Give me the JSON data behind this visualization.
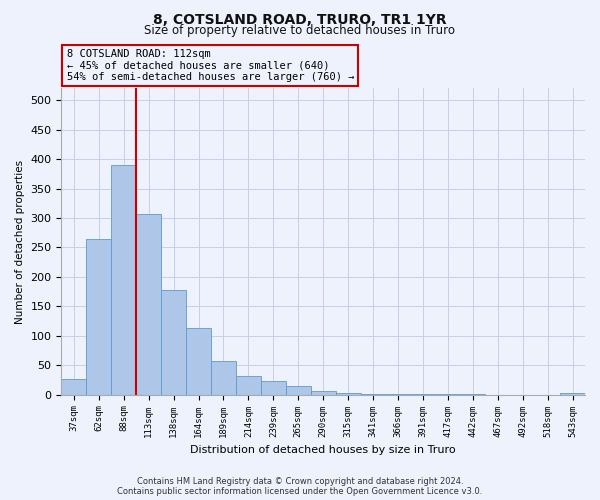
{
  "title": "8, COTSLAND ROAD, TRURO, TR1 1YR",
  "subtitle": "Size of property relative to detached houses in Truro",
  "xlabel": "Distribution of detached houses by size in Truro",
  "ylabel": "Number of detached properties",
  "footer_line1": "Contains HM Land Registry data © Crown copyright and database right 2024.",
  "footer_line2": "Contains public sector information licensed under the Open Government Licence v3.0.",
  "categories": [
    "37sqm",
    "62sqm",
    "88sqm",
    "113sqm",
    "138sqm",
    "164sqm",
    "189sqm",
    "214sqm",
    "239sqm",
    "265sqm",
    "290sqm",
    "315sqm",
    "341sqm",
    "366sqm",
    "391sqm",
    "417sqm",
    "442sqm",
    "467sqm",
    "492sqm",
    "518sqm",
    "543sqm"
  ],
  "values": [
    27,
    265,
    390,
    307,
    178,
    113,
    58,
    31,
    23,
    14,
    7,
    3,
    1,
    1,
    1,
    1,
    1,
    0,
    0,
    0,
    3
  ],
  "bar_color": "#aec6e8",
  "bar_edge_color": "#5b9bd5",
  "grid_color": "#c8d0e8",
  "background_color": "#eef2fc",
  "vline_color": "#cc0000",
  "annotation_text": "8 COTSLAND ROAD: 112sqm\n← 45% of detached houses are smaller (640)\n54% of semi-detached houses are larger (760) →",
  "annotation_box_color": "#cc0000",
  "ylim": [
    0,
    520
  ],
  "yticks": [
    0,
    50,
    100,
    150,
    200,
    250,
    300,
    350,
    400,
    450,
    500
  ]
}
